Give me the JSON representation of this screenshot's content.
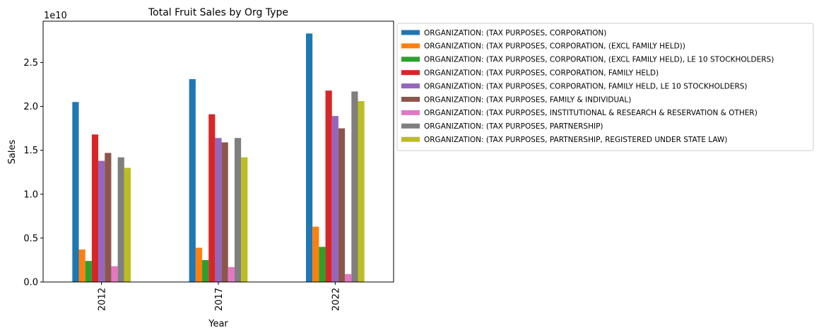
{
  "chart_data": {
    "type": "bar",
    "title": "Total Fruit Sales by Org Type",
    "xlabel": "Year",
    "ylabel": "Sales",
    "y_offset_text": "1e10",
    "categories": [
      "2012",
      "2017",
      "2022"
    ],
    "ylim": [
      0,
      29700000000.0
    ],
    "yticks": [
      0,
      5000000000.0,
      10000000000.0,
      15000000000.0,
      20000000000.0,
      25000000000.0
    ],
    "ytick_labels": [
      "0.0",
      "0.5",
      "1.0",
      "1.5",
      "2.0",
      "2.5"
    ],
    "grid": false,
    "legend_position": "outside-right-top",
    "series": [
      {
        "name": "ORGANIZATION: (TAX PURPOSES, CORPORATION)",
        "color": "#1f77b4",
        "values": [
          20500000000.0,
          23100000000.0,
          28300000000.0
        ]
      },
      {
        "name": "ORGANIZATION: (TAX PURPOSES, CORPORATION, (EXCL FAMILY HELD))",
        "color": "#ff7f0e",
        "values": [
          3700000000.0,
          3900000000.0,
          6300000000.0
        ]
      },
      {
        "name": "ORGANIZATION: (TAX PURPOSES, CORPORATION, (EXCL FAMILY HELD), LE 10 STOCKHOLDERS)",
        "color": "#2ca02c",
        "values": [
          2400000000.0,
          2500000000.0,
          4000000000.0
        ]
      },
      {
        "name": "ORGANIZATION: (TAX PURPOSES, CORPORATION, FAMILY HELD)",
        "color": "#d62728",
        "values": [
          16800000000.0,
          19100000000.0,
          21800000000.0
        ]
      },
      {
        "name": "ORGANIZATION: (TAX PURPOSES, CORPORATION, FAMILY HELD, LE 10 STOCKHOLDERS)",
        "color": "#9467bd",
        "values": [
          13800000000.0,
          16400000000.0,
          18900000000.0
        ]
      },
      {
        "name": "ORGANIZATION: (TAX PURPOSES, FAMILY & INDIVIDUAL)",
        "color": "#8c564b",
        "values": [
          14700000000.0,
          15900000000.0,
          17500000000.0
        ]
      },
      {
        "name": "ORGANIZATION: (TAX PURPOSES, INSTITUTIONAL & RESEARCH & RESERVATION & OTHER)",
        "color": "#e377c2",
        "values": [
          1800000000.0,
          1700000000.0,
          900000000.0
        ]
      },
      {
        "name": "ORGANIZATION: (TAX PURPOSES, PARTNERSHIP)",
        "color": "#7f7f7f",
        "values": [
          14200000000.0,
          16400000000.0,
          21700000000.0
        ]
      },
      {
        "name": "ORGANIZATION: (TAX PURPOSES, PARTNERSHIP, REGISTERED UNDER STATE LAW)",
        "color": "#bcbd22",
        "values": [
          13000000000.0,
          14200000000.0,
          20600000000.0
        ]
      }
    ]
  }
}
